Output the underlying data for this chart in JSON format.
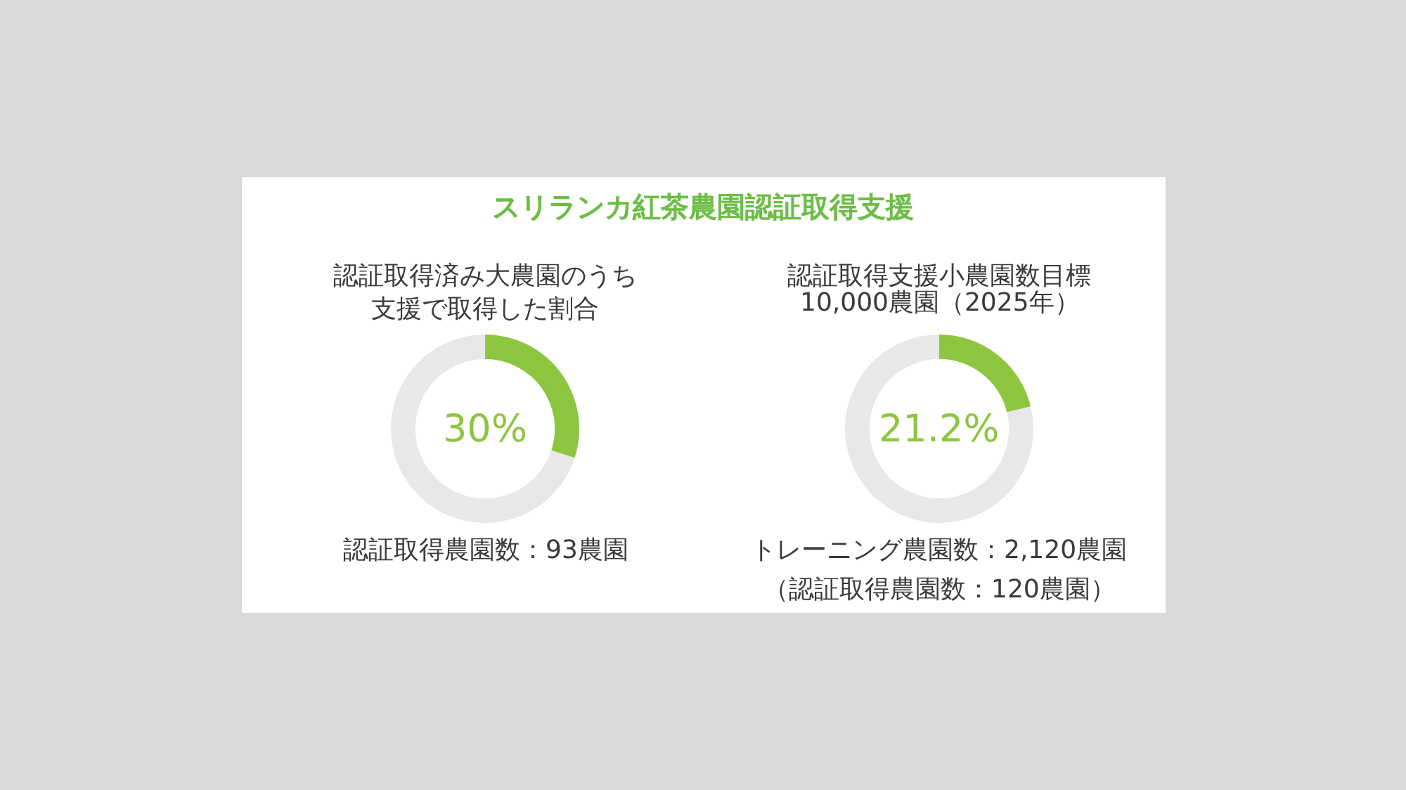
{
  "chart_data": [
    {
      "type": "other",
      "title": "スリランカ紅茶農園認証取得支援"
    },
    {
      "type": "donut",
      "title": "認証取得済み大農園のうち支援で取得した割合",
      "categories": [
        null,
        null
      ],
      "values": [
        30,
        70
      ],
      "colors": [
        "#8cc63f",
        "#e8e8e8"
      ],
      "annotations": [
        "30%",
        "認証取得農園数：93農園"
      ]
    },
    {
      "type": "donut",
      "title": "認証取得支援小農園数目標",
      "subtitle": "10,000農園（2025年）",
      "categories": [
        null,
        null
      ],
      "values": [
        21.2,
        78.8
      ],
      "colors": [
        "#8cc63f",
        "#e8e8e8"
      ],
      "annotations": [
        "21.2%",
        "トレーニング農園数：2,120農園",
        "（認証取得農園数：120農園）"
      ]
    }
  ]
}
